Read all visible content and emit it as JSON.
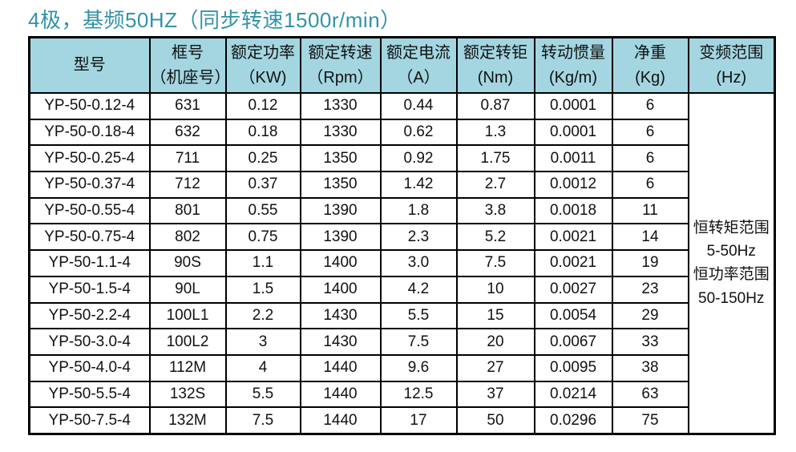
{
  "page": {
    "title": "4极，基频50HZ（同步转速1500r/min）",
    "colors": {
      "title": "#3293a9",
      "header_bg": "#a3d6e1",
      "border": "#000000"
    }
  },
  "table": {
    "columns": [
      {
        "title": "型号",
        "unit": ""
      },
      {
        "title": "框号",
        "unit": "（机座号）"
      },
      {
        "title": "额定功率",
        "unit": "（KW)"
      },
      {
        "title": "额定转速",
        "unit": "（Rpm）"
      },
      {
        "title": "额定电流",
        "unit": "（A）"
      },
      {
        "title": "额定转钜",
        "unit": "(Nm)"
      },
      {
        "title": "转动惯量",
        "unit": "(Kg/m)"
      },
      {
        "title": "净重",
        "unit": "(Kg)"
      },
      {
        "title": "变频范围",
        "unit": "(Hz)"
      }
    ],
    "rows": [
      [
        "YP-50-0.12-4",
        "631",
        "0.12",
        "1330",
        "0.44",
        "0.87",
        "0.0001",
        "6"
      ],
      [
        "YP-50-0.18-4",
        "632",
        "0.18",
        "1330",
        "0.62",
        "1.3",
        "0.0001",
        "6"
      ],
      [
        "YP-50-0.25-4",
        "711",
        "0.25",
        "1350",
        "0.92",
        "1.75",
        "0.0011",
        "6"
      ],
      [
        "YP-50-0.37-4",
        "712",
        "0.37",
        "1350",
        "1.42",
        "2.7",
        "0.0012",
        "6"
      ],
      [
        "YP-50-0.55-4",
        "801",
        "0.55",
        "1390",
        "1.8",
        "3.8",
        "0.0018",
        "11"
      ],
      [
        "YP-50-0.75-4",
        "802",
        "0.75",
        "1390",
        "2.3",
        "5.2",
        "0.0021",
        "14"
      ],
      [
        "YP-50-1.1-4",
        "90S",
        "1.1",
        "1400",
        "3.0",
        "7.5",
        "0.0021",
        "19"
      ],
      [
        "YP-50-1.5-4",
        "90L",
        "1.5",
        "1400",
        "4.2",
        "10",
        "0.0027",
        "23"
      ],
      [
        "YP-50-2.2-4",
        "100L1",
        "2.2",
        "1430",
        "5.5",
        "15",
        "0.0054",
        "29"
      ],
      [
        "YP-50-3.0-4",
        "100L2",
        "3",
        "1430",
        "7.5",
        "20",
        "0.0067",
        "33"
      ],
      [
        "YP-50-4.0-4",
        "112M",
        "4",
        "1440",
        "9.6",
        "27",
        "0.0095",
        "38"
      ],
      [
        "YP-50-5.5-4",
        "132S",
        "5.5",
        "1440",
        "12.5",
        "37",
        "0.0214",
        "63"
      ],
      [
        "YP-50-7.5-4",
        "132M",
        "7.5",
        "1440",
        "17",
        "50",
        "0.0296",
        "75"
      ]
    ],
    "merged_cell": {
      "lines": [
        "恒转矩范围",
        "5-50Hz",
        "恒功率范围",
        "50-150Hz"
      ]
    }
  }
}
